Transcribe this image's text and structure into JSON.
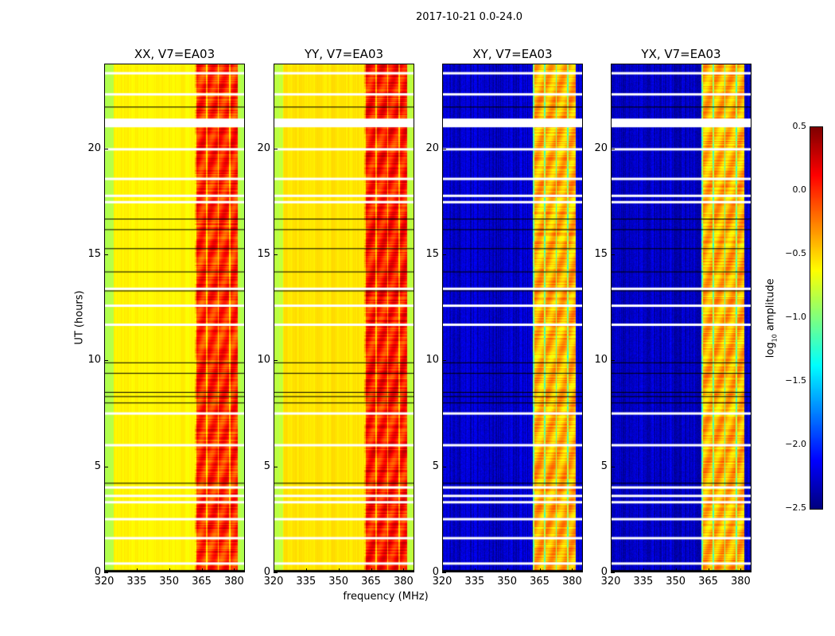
{
  "chart_data": {
    "type": "heatmap",
    "title": "2017-10-21 0.0-24.0",
    "xlabel": "frequency (MHz)",
    "ylabel": "UT (hours)",
    "xlim": [
      320,
      385
    ],
    "ylim": [
      0,
      24
    ],
    "xticks": [
      "320",
      "335",
      "350",
      "365",
      "380"
    ],
    "yticks": [
      "0",
      "5",
      "10",
      "15",
      "20"
    ],
    "colorbar": {
      "label": "log10 amplitude",
      "label_main": "log",
      "label_sub": "10",
      "label_rest": " amplitude",
      "range": [
        -2.5,
        0.5
      ],
      "ticks": [
        "0.5",
        "0.0",
        "−0.5",
        "−1.0",
        "−1.5",
        "−2.0",
        "−2.5"
      ],
      "colormap": "jet"
    },
    "panels": [
      {
        "title": "XX, V7=EA03",
        "baseline": -0.6,
        "band_level": 0.1
      },
      {
        "title": "YY, V7=EA03",
        "baseline": -0.55,
        "band_level": 0.15
      },
      {
        "title": "XY, V7=EA03",
        "baseline": -2.3,
        "band_level": -0.4
      },
      {
        "title": "YX, V7=EA03",
        "baseline": -2.3,
        "band_level": -0.4
      }
    ],
    "rfi_band_mhz": [
      362,
      382
    ],
    "flagged_hours": [
      23.6,
      21.4,
      13.4,
      7.5,
      6.0,
      22.6,
      20.0,
      18.6,
      17.8,
      17.5,
      12.6,
      11.7,
      4.0,
      3.6,
      3.3,
      2.5,
      1.6,
      0.4
    ],
    "gap_hours": [
      22.0,
      16.7,
      16.2,
      15.3,
      14.2,
      13.3,
      9.9,
      9.4,
      8.5,
      8.3,
      8.0,
      4.2
    ]
  }
}
